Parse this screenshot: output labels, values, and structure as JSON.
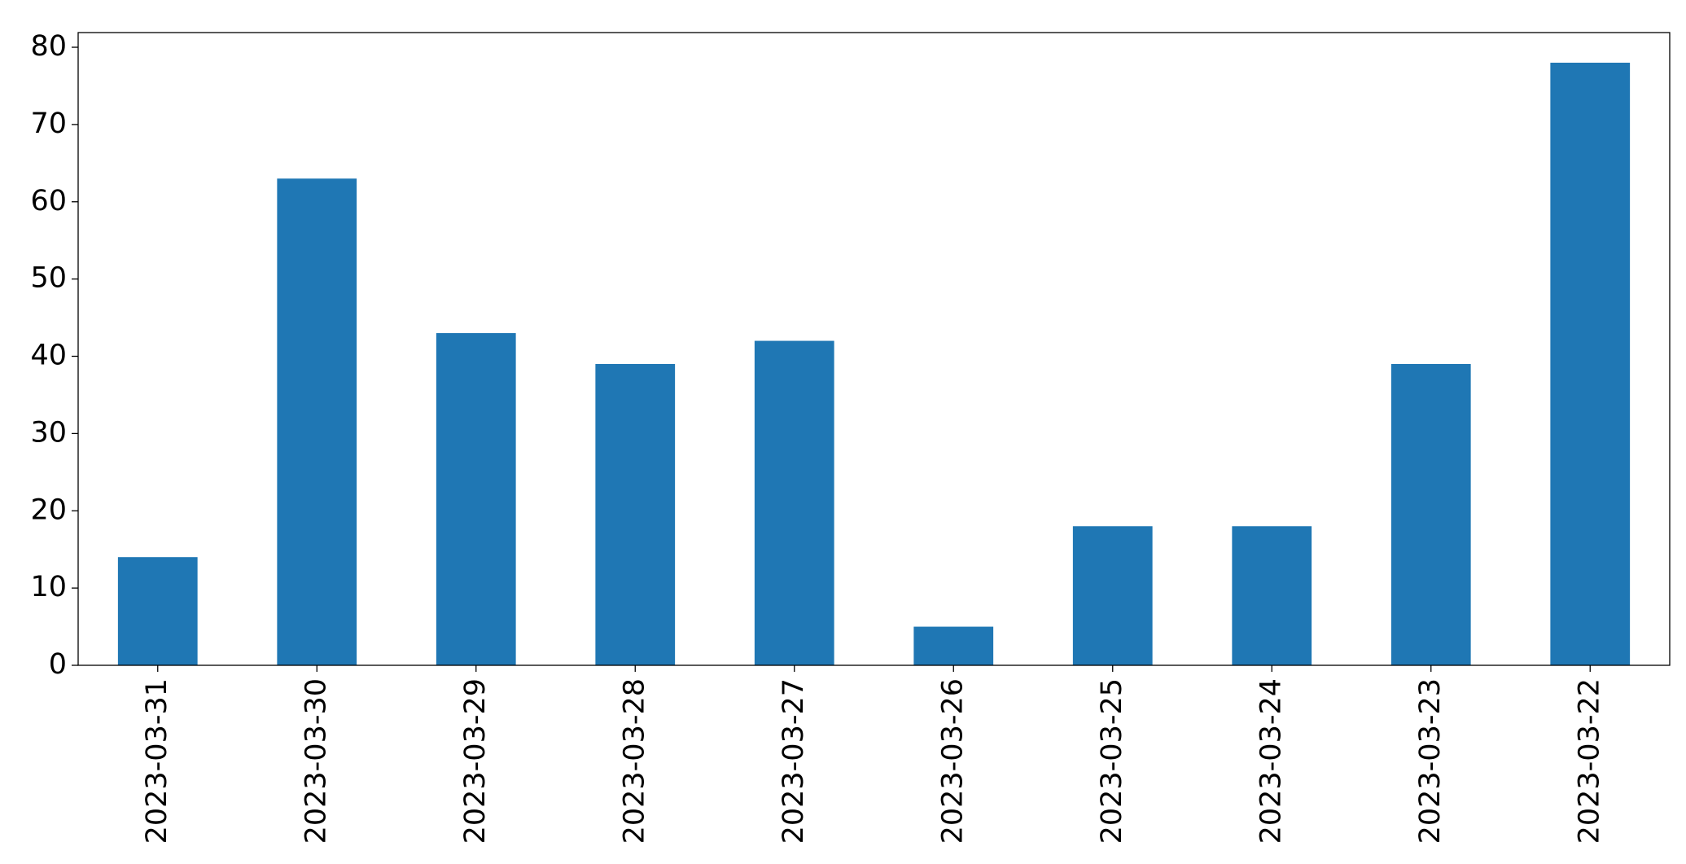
{
  "chart_data": {
    "type": "bar",
    "categories": [
      "2023-03-31",
      "2023-03-30",
      "2023-03-29",
      "2023-03-28",
      "2023-03-27",
      "2023-03-26",
      "2023-03-25",
      "2023-03-24",
      "2023-03-23",
      "2023-03-22"
    ],
    "values": [
      14,
      63,
      43,
      39,
      42,
      5,
      18,
      18,
      39,
      78
    ],
    "color": "#1f77b4",
    "ylim": [
      0,
      81.9
    ],
    "yticks": [
      0,
      10,
      20,
      30,
      40,
      50,
      60,
      70,
      80
    ],
    "grid": false
  }
}
